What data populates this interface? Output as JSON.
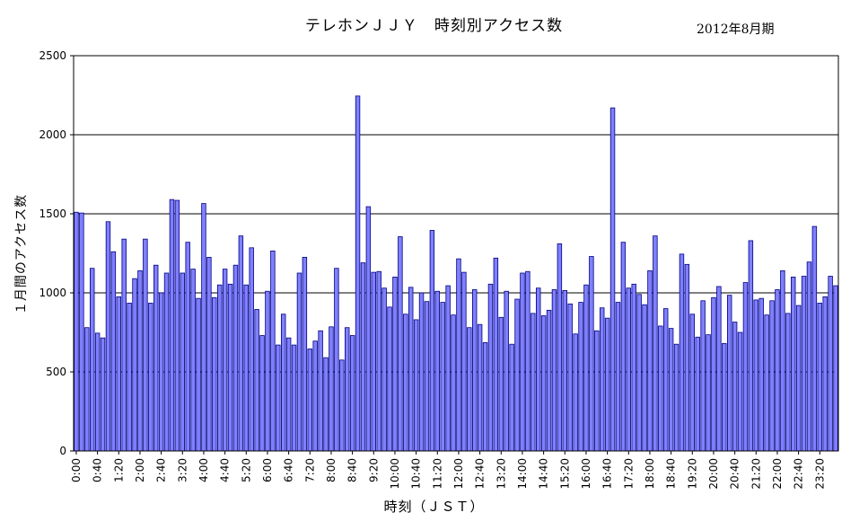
{
  "chart_data": {
    "type": "bar",
    "title": "テレホンＪＪＹ　時刻別アクセス数",
    "subtitle": "2012年8月期",
    "xlabel": "時刻（ＪＳＴ）",
    "ylabel": "１月間のアクセス数",
    "ylim": [
      0,
      2500
    ],
    "yticks": [
      0,
      500,
      1000,
      1500,
      2000,
      2500
    ],
    "grid": true,
    "legend": "none",
    "bar_color": "#8080ff",
    "bar_edge_color": "#000080",
    "tick_labels": [
      "0:00",
      "0:40",
      "1:20",
      "2:00",
      "2:40",
      "3:20",
      "4:00",
      "4:40",
      "5:20",
      "6:00",
      "6:40",
      "7:20",
      "8:00",
      "8:40",
      "9:20",
      "10:00",
      "10:40",
      "11:20",
      "12:00",
      "12:40",
      "13:20",
      "14:00",
      "14:40",
      "15:20",
      "16:00",
      "16:40",
      "17:20",
      "18:00",
      "18:40",
      "19:20",
      "20:00",
      "20:40",
      "21:20",
      "22:00",
      "22:40",
      "23:20"
    ],
    "tick_every": 4,
    "interval_minutes": 10,
    "values": [
      1510,
      1505,
      780,
      1155,
      745,
      715,
      1450,
      1260,
      975,
      1340,
      935,
      1090,
      1140,
      1340,
      935,
      1175,
      1000,
      1125,
      1590,
      1585,
      1125,
      1320,
      1150,
      965,
      1565,
      1225,
      970,
      1050,
      1150,
      1055,
      1175,
      1360,
      1050,
      1285,
      895,
      730,
      1010,
      1265,
      670,
      865,
      715,
      670,
      1125,
      1225,
      645,
      695,
      760,
      590,
      785,
      1155,
      575,
      780,
      730,
      2245,
      1190,
      1545,
      1130,
      1135,
      1030,
      910,
      1100,
      1355,
      865,
      1035,
      830,
      1000,
      945,
      1395,
      1010,
      940,
      1045,
      860,
      1215,
      1130,
      780,
      1020,
      800,
      685,
      1055,
      1220,
      845,
      1010,
      675,
      960,
      1125,
      1135,
      870,
      1030,
      855,
      890,
      1020,
      1310,
      1015,
      930,
      740,
      940,
      1050,
      1230,
      760,
      905,
      840,
      2170,
      940,
      1320,
      1030,
      1055,
      990,
      925,
      1140,
      1360,
      790,
      900,
      775,
      675,
      1245,
      1180,
      865,
      720,
      950,
      735,
      970,
      1040,
      680,
      985,
      815,
      750,
      1065,
      1330,
      955,
      965,
      860,
      950,
      1020,
      1140,
      870,
      1100,
      920,
      1105,
      1195,
      1420,
      935,
      975,
      1105,
      1045
    ]
  }
}
